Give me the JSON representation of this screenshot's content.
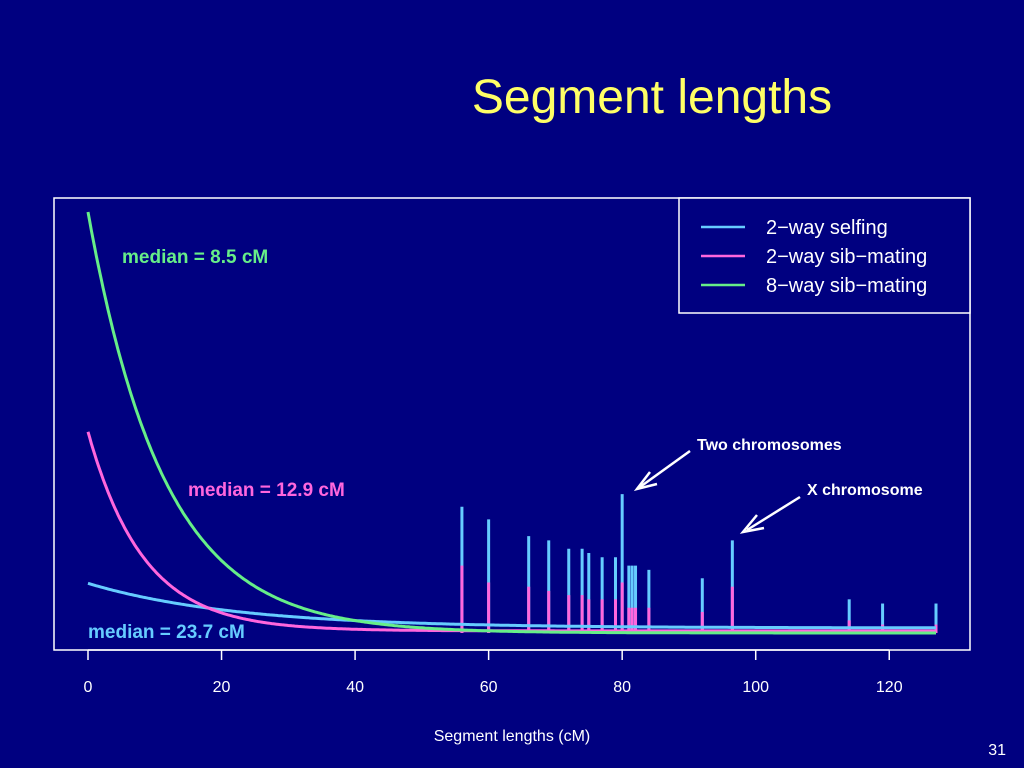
{
  "slide": {
    "title": "Segment lengths",
    "number": "31"
  },
  "colors": {
    "background": "#000080",
    "title": "#FFFF66",
    "axis": "#FFFFFF",
    "selfing": "#66CCFF",
    "sib2": "#FF66DD",
    "sib8": "#66EE88"
  },
  "chart_data": {
    "type": "line",
    "xlabel": "Segment lengths (cM)",
    "ylabel": "",
    "xlim": [
      0,
      127
    ],
    "xticks": [
      0,
      20,
      40,
      60,
      80,
      100,
      120
    ],
    "grid": false,
    "legend_position": "top-right",
    "series": [
      {
        "name": "2−way selfing",
        "key": "selfing",
        "start": 0.118,
        "decay": 0.045,
        "tail": 0.012
      },
      {
        "name": "2−way sib−mating",
        "key": "sib2",
        "start": 0.478,
        "decay": 0.12,
        "tail": 0.005
      },
      {
        "name": "8−way sib−mating",
        "key": "sib8",
        "start": 1.0,
        "decay": 0.088,
        "tail": 0.0
      }
    ],
    "spikes": [
      {
        "x": 56,
        "selfing": 0.3,
        "sib2": 0.16
      },
      {
        "x": 60,
        "selfing": 0.27,
        "sib2": 0.12
      },
      {
        "x": 66,
        "selfing": 0.23,
        "sib2": 0.11
      },
      {
        "x": 69,
        "selfing": 0.22,
        "sib2": 0.1
      },
      {
        "x": 72,
        "selfing": 0.2,
        "sib2": 0.09
      },
      {
        "x": 74,
        "selfing": 0.2,
        "sib2": 0.09
      },
      {
        "x": 75,
        "selfing": 0.19,
        "sib2": 0.08
      },
      {
        "x": 77,
        "selfing": 0.18,
        "sib2": 0.08
      },
      {
        "x": 79,
        "selfing": 0.18,
        "sib2": 0.08
      },
      {
        "x": 80,
        "selfing": 0.33,
        "sib2": 0.12
      },
      {
        "x": 81,
        "selfing": 0.16,
        "sib2": 0.06
      },
      {
        "x": 81.5,
        "selfing": 0.16,
        "sib2": 0.06
      },
      {
        "x": 82,
        "selfing": 0.16,
        "sib2": 0.06
      },
      {
        "x": 84,
        "selfing": 0.15,
        "sib2": 0.06
      },
      {
        "x": 92,
        "selfing": 0.13,
        "sib2": 0.05
      },
      {
        "x": 96.5,
        "selfing": 0.22,
        "sib2": 0.11
      },
      {
        "x": 114,
        "selfing": 0.08,
        "sib2": 0.03
      },
      {
        "x": 119,
        "selfing": 0.07,
        "sib2": 0.02
      },
      {
        "x": 127,
        "selfing": 0.07,
        "sib2": 0.02
      }
    ],
    "annotations": {
      "median_sib8": "median = 8.5 cM",
      "median_sib2": "median = 12.9 cM",
      "median_selfing": "median = 23.7 cM",
      "two_chromosomes": "Two chromosomes",
      "x_chromosome": "X chromosome"
    }
  }
}
